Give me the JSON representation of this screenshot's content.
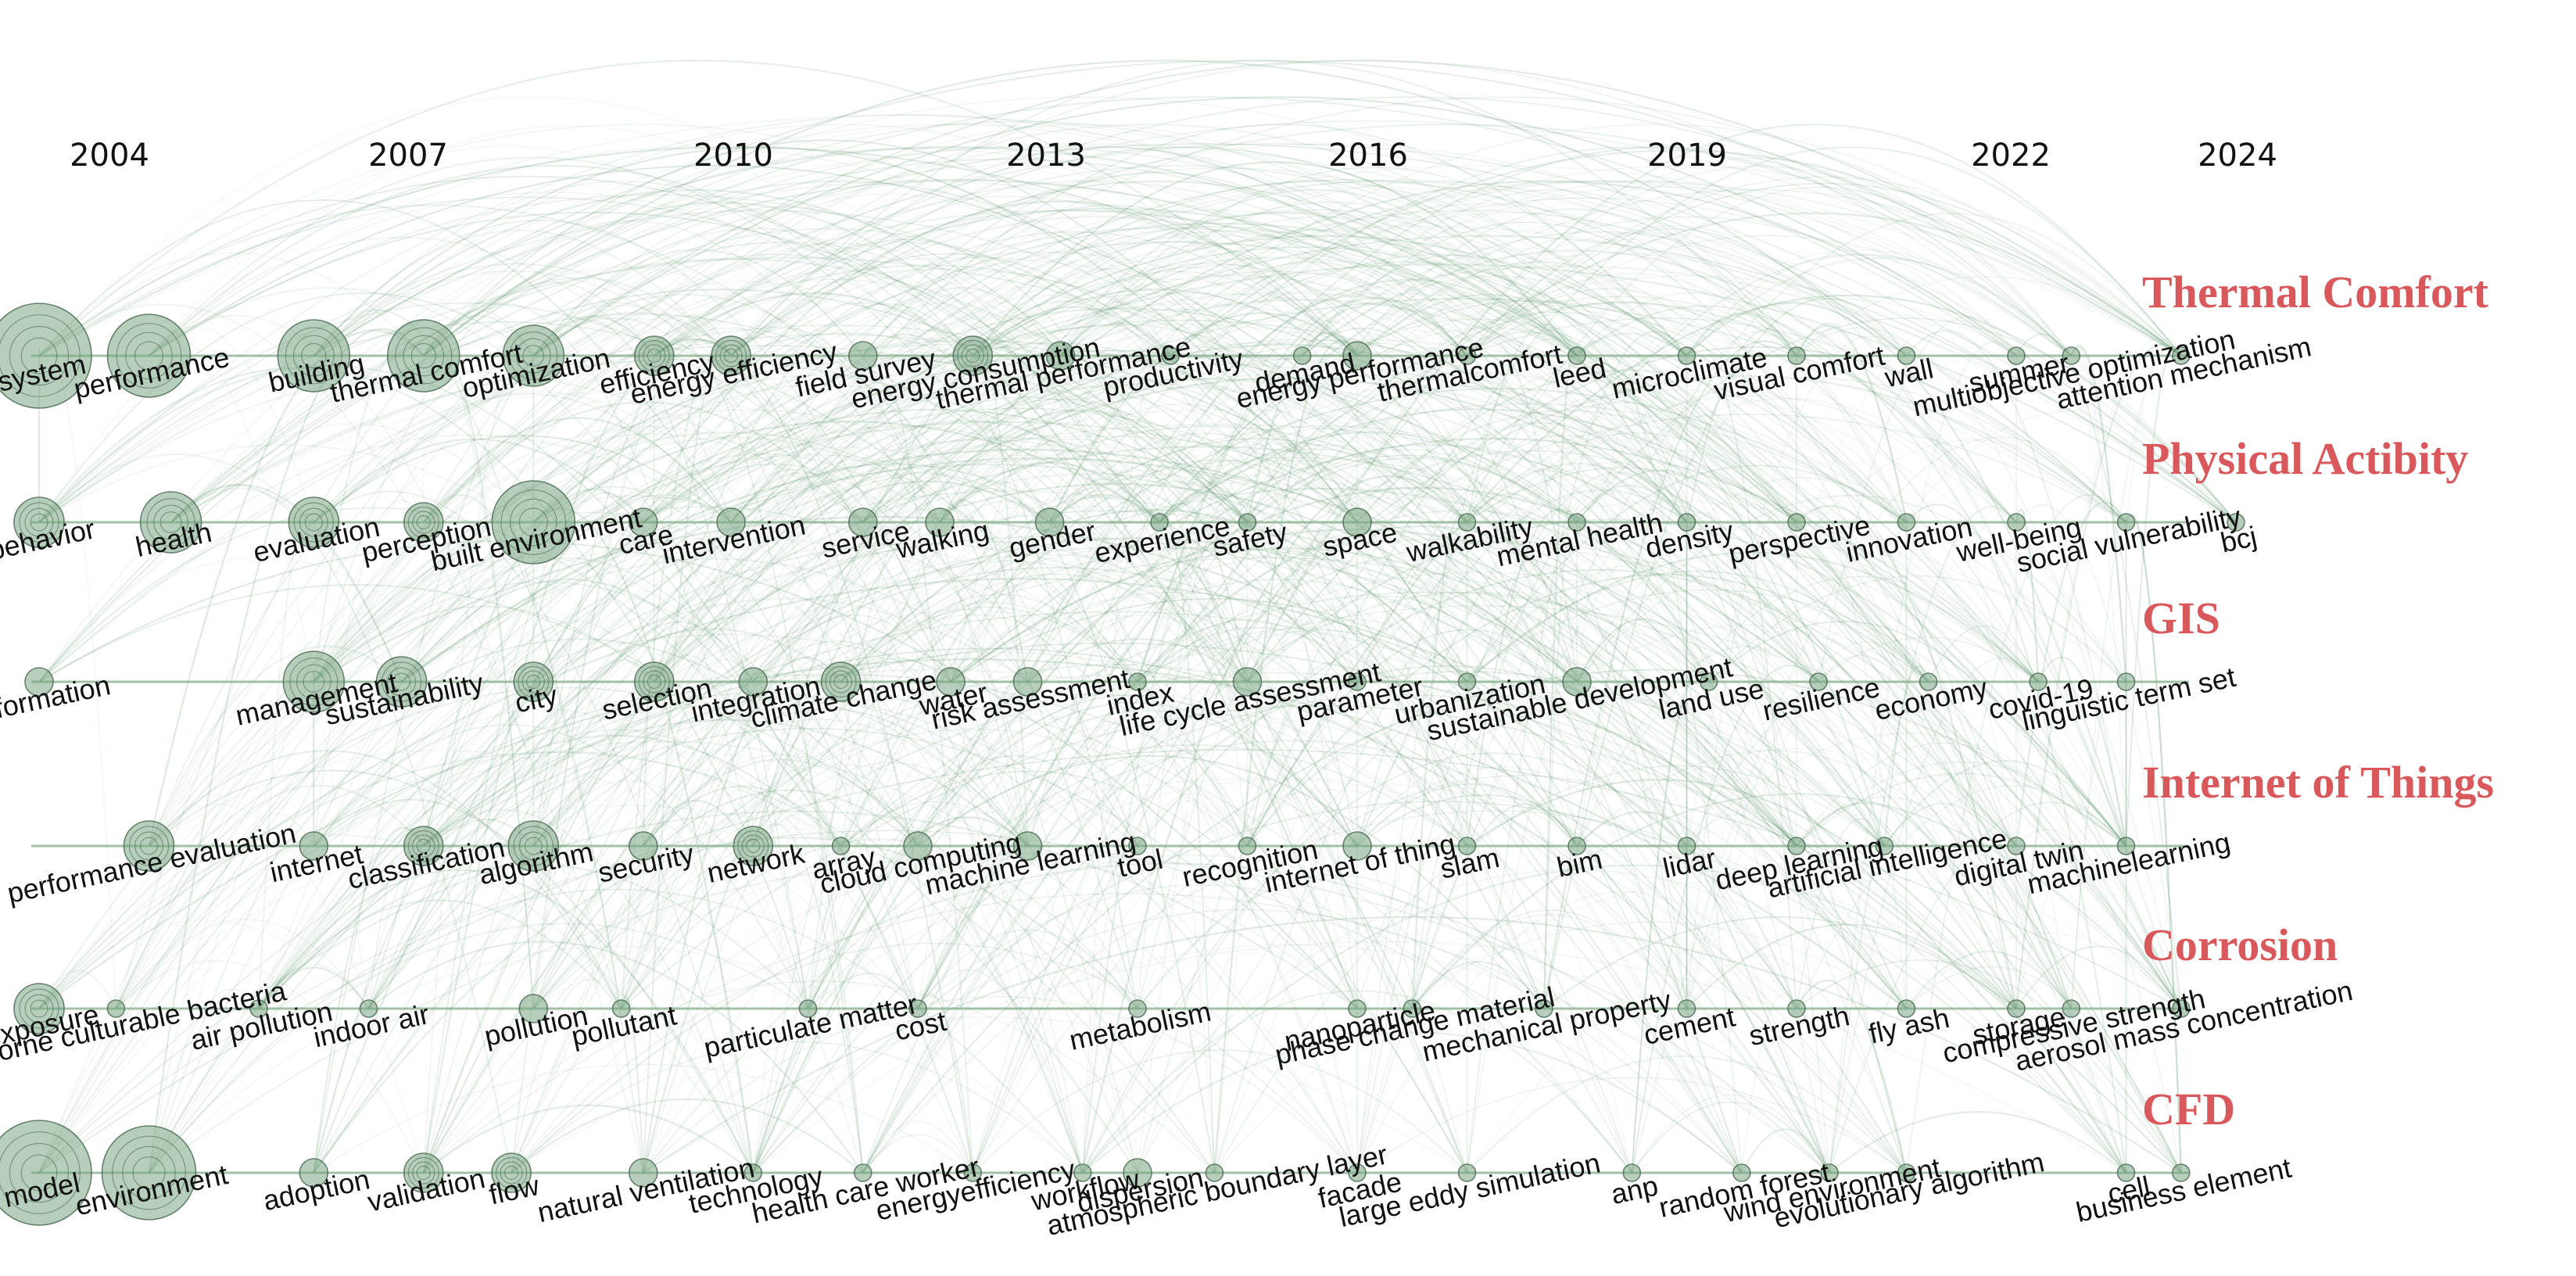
{
  "chart_data": {
    "type": "timeline",
    "colors": {
      "link": "#6c9e78",
      "node_fill": "#7aa683",
      "node_stroke": "#47664f",
      "cluster_label": "#d9585b",
      "text": "#111111"
    },
    "years": [
      "2004",
      "2007",
      "2010",
      "2013",
      "2016",
      "2019",
      "2022",
      "2024"
    ],
    "x_range": [
      2004,
      2024
    ],
    "clusters": [
      {
        "label": "Thermal Comfort",
        "keywords": [
          {
            "text": "system",
            "year": 2004.0,
            "size": 9
          },
          {
            "text": "performance",
            "year": 2005.0,
            "size": 7
          },
          {
            "text": "building",
            "year": 2006.5,
            "size": 6
          },
          {
            "text": "thermal comfort",
            "year": 2007.5,
            "size": 6
          },
          {
            "text": "optimization",
            "year": 2008.5,
            "size": 5
          },
          {
            "text": "efficiency",
            "year": 2009.6,
            "size": 3
          },
          {
            "text": "energy efficiency",
            "year": 2010.3,
            "size": 3
          },
          {
            "text": "field survey",
            "year": 2011.5,
            "size": 2
          },
          {
            "text": "energy consumption",
            "year": 2012.5,
            "size": 3
          },
          {
            "text": "thermal performance",
            "year": 2013.3,
            "size": 2
          },
          {
            "text": "productivity",
            "year": 2014.3,
            "size": 1
          },
          {
            "text": "demand",
            "year": 2015.5,
            "size": 1
          },
          {
            "text": "energy performance",
            "year": 2016.0,
            "size": 2
          },
          {
            "text": "thermalcomfort",
            "year": 2017.0,
            "size": 1
          },
          {
            "text": "leed",
            "year": 2018.0,
            "size": 1
          },
          {
            "text": "microclimate",
            "year": 2019.0,
            "size": 1
          },
          {
            "text": "visual comfort",
            "year": 2020.0,
            "size": 1
          },
          {
            "text": "wall",
            "year": 2021.0,
            "size": 1
          },
          {
            "text": "summer",
            "year": 2022.0,
            "size": 1
          },
          {
            "text": "multiobjective optimization",
            "year": 2022.5,
            "size": 1
          },
          {
            "text": "attention mechanism",
            "year": 2023.5,
            "size": 1
          }
        ]
      },
      {
        "label": "Physical Actibity",
        "keywords": [
          {
            "text": "behavior",
            "year": 2004.0,
            "size": 4
          },
          {
            "text": "health",
            "year": 2005.2,
            "size": 5
          },
          {
            "text": "evaluation",
            "year": 2006.5,
            "size": 4
          },
          {
            "text": "perception",
            "year": 2007.5,
            "size": 3
          },
          {
            "text": "built environment",
            "year": 2008.5,
            "size": 7
          },
          {
            "text": "care",
            "year": 2009.5,
            "size": 2
          },
          {
            "text": "intervention",
            "year": 2010.3,
            "size": 2
          },
          {
            "text": "service",
            "year": 2011.5,
            "size": 2
          },
          {
            "text": "walking",
            "year": 2012.2,
            "size": 2
          },
          {
            "text": "gender",
            "year": 2013.2,
            "size": 2
          },
          {
            "text": "experience",
            "year": 2014.2,
            "size": 1
          },
          {
            "text": "safety",
            "year": 2015.0,
            "size": 1
          },
          {
            "text": "space",
            "year": 2016.0,
            "size": 2
          },
          {
            "text": "walkability",
            "year": 2017.0,
            "size": 1
          },
          {
            "text": "mental health",
            "year": 2018.0,
            "size": 1
          },
          {
            "text": "density",
            "year": 2019.0,
            "size": 1
          },
          {
            "text": "perspective",
            "year": 2020.0,
            "size": 1
          },
          {
            "text": "innovation",
            "year": 2021.0,
            "size": 1
          },
          {
            "text": "well-being",
            "year": 2022.0,
            "size": 1
          },
          {
            "text": "social vulnerability",
            "year": 2023.0,
            "size": 1
          },
          {
            "text": "bcj",
            "year": 2024.0,
            "size": 1
          }
        ]
      },
      {
        "label": "GIS",
        "keywords": [
          {
            "text": "information",
            "year": 2004.0,
            "size": 2
          },
          {
            "text": "management",
            "year": 2006.5,
            "size": 5
          },
          {
            "text": "sustainability",
            "year": 2007.3,
            "size": 4
          },
          {
            "text": "city",
            "year": 2008.5,
            "size": 3
          },
          {
            "text": "selection",
            "year": 2009.6,
            "size": 3
          },
          {
            "text": "integration",
            "year": 2010.5,
            "size": 2
          },
          {
            "text": "climate change",
            "year": 2011.3,
            "size": 3
          },
          {
            "text": "water",
            "year": 2012.3,
            "size": 2
          },
          {
            "text": "risk assessment",
            "year": 2013.0,
            "size": 2
          },
          {
            "text": "index",
            "year": 2014.0,
            "size": 1
          },
          {
            "text": "life cycle assessment",
            "year": 2015.0,
            "size": 2
          },
          {
            "text": "parameter",
            "year": 2016.0,
            "size": 1
          },
          {
            "text": "urbanization",
            "year": 2017.0,
            "size": 1
          },
          {
            "text": "sustainable development",
            "year": 2018.0,
            "size": 2
          },
          {
            "text": "land use",
            "year": 2019.2,
            "size": 1
          },
          {
            "text": "resilience",
            "year": 2020.2,
            "size": 1
          },
          {
            "text": "economy",
            "year": 2021.2,
            "size": 1
          },
          {
            "text": "covid-19",
            "year": 2022.2,
            "size": 1
          },
          {
            "text": "linguistic term set",
            "year": 2023.0,
            "size": 1
          }
        ]
      },
      {
        "label": "Internet of Things",
        "keywords": [
          {
            "text": "performance evaluation",
            "year": 2005.0,
            "size": 4
          },
          {
            "text": "internet",
            "year": 2006.5,
            "size": 2
          },
          {
            "text": "classification",
            "year": 2007.5,
            "size": 3
          },
          {
            "text": "algorithm",
            "year": 2008.5,
            "size": 4
          },
          {
            "text": "security",
            "year": 2009.5,
            "size": 2
          },
          {
            "text": "network",
            "year": 2010.5,
            "size": 3
          },
          {
            "text": "array",
            "year": 2011.3,
            "size": 1
          },
          {
            "text": "cloud computing",
            "year": 2012.0,
            "size": 2
          },
          {
            "text": "machine learning",
            "year": 2013.0,
            "size": 2
          },
          {
            "text": "tool",
            "year": 2014.0,
            "size": 1
          },
          {
            "text": "recognition",
            "year": 2015.0,
            "size": 1
          },
          {
            "text": "internet of thing",
            "year": 2016.0,
            "size": 2
          },
          {
            "text": "slam",
            "year": 2017.0,
            "size": 1
          },
          {
            "text": "bim",
            "year": 2018.0,
            "size": 1
          },
          {
            "text": "lidar",
            "year": 2019.0,
            "size": 1
          },
          {
            "text": "deep learning",
            "year": 2020.0,
            "size": 1
          },
          {
            "text": "artificial intelligence",
            "year": 2020.8,
            "size": 1
          },
          {
            "text": "digital twin",
            "year": 2022.0,
            "size": 1
          },
          {
            "text": "machinelearning",
            "year": 2023.0,
            "size": 1
          }
        ]
      },
      {
        "label": "Corrosion",
        "keywords": [
          {
            "text": "exposure",
            "year": 2004.0,
            "size": 4
          },
          {
            "text": "airborne culturable bacteria",
            "year": 2004.7,
            "size": 1
          },
          {
            "text": "air pollution",
            "year": 2006.0,
            "size": 1
          },
          {
            "text": "indoor air",
            "year": 2007.0,
            "size": 1
          },
          {
            "text": "pollution",
            "year": 2008.5,
            "size": 2
          },
          {
            "text": "pollutant",
            "year": 2009.3,
            "size": 1
          },
          {
            "text": "particulate matter",
            "year": 2011.0,
            "size": 1
          },
          {
            "text": "cost",
            "year": 2012.0,
            "size": 1
          },
          {
            "text": "metabolism",
            "year": 2014.0,
            "size": 1
          },
          {
            "text": "nanoparticle",
            "year": 2016.0,
            "size": 1
          },
          {
            "text": "phase change material",
            "year": 2016.5,
            "size": 1
          },
          {
            "text": "mechanical property",
            "year": 2017.7,
            "size": 1
          },
          {
            "text": "cement",
            "year": 2019.0,
            "size": 1
          },
          {
            "text": "strength",
            "year": 2020.0,
            "size": 1
          },
          {
            "text": "fly ash",
            "year": 2021.0,
            "size": 1
          },
          {
            "text": "storage",
            "year": 2022.0,
            "size": 1
          },
          {
            "text": "compressive strength",
            "year": 2022.5,
            "size": 1
          },
          {
            "text": "aerosol mass concentration",
            "year": 2023.5,
            "size": 1
          }
        ]
      },
      {
        "label": "CFD",
        "keywords": [
          {
            "text": "model",
            "year": 2004.0,
            "size": 9
          },
          {
            "text": "environment",
            "year": 2005.0,
            "size": 8
          },
          {
            "text": "adoption",
            "year": 2006.5,
            "size": 2
          },
          {
            "text": "validation",
            "year": 2007.5,
            "size": 3
          },
          {
            "text": "flow",
            "year": 2008.3,
            "size": 3
          },
          {
            "text": "natural ventilation",
            "year": 2009.5,
            "size": 2
          },
          {
            "text": "technology",
            "year": 2010.5,
            "size": 1
          },
          {
            "text": "health care worker",
            "year": 2011.5,
            "size": 1
          },
          {
            "text": "energyefficiency",
            "year": 2012.5,
            "size": 1
          },
          {
            "text": "workflow",
            "year": 2013.5,
            "size": 1
          },
          {
            "text": "dispersion",
            "year": 2014.0,
            "size": 2
          },
          {
            "text": "atmospheric boundary layer",
            "year": 2014.7,
            "size": 1
          },
          {
            "text": "facade",
            "year": 2016.0,
            "size": 1
          },
          {
            "text": "large eddy simulation",
            "year": 2017.0,
            "size": 1
          },
          {
            "text": "anp",
            "year": 2018.5,
            "size": 1
          },
          {
            "text": "random forest",
            "year": 2019.5,
            "size": 1
          },
          {
            "text": "wind environment",
            "year": 2020.3,
            "size": 1
          },
          {
            "text": "evolutionary algorithm",
            "year": 2021.0,
            "size": 1
          },
          {
            "text": "cell",
            "year": 2023.0,
            "size": 1
          },
          {
            "text": "business element",
            "year": 2023.5,
            "size": 1
          }
        ]
      }
    ]
  }
}
